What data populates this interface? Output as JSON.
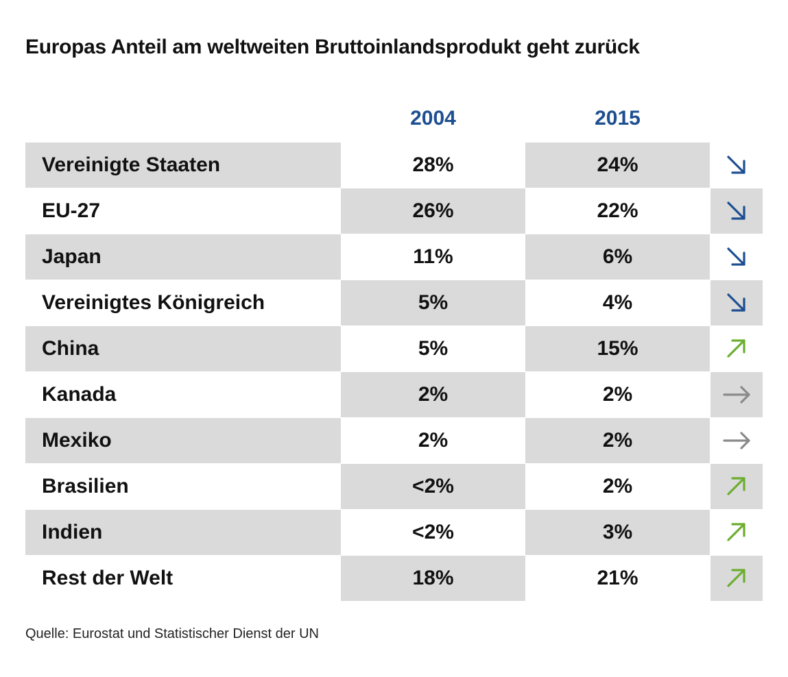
{
  "chart_data": {
    "type": "table",
    "title": "Europas Anteil am weltweiten Bruttoinlandsprodukt geht zurück",
    "columns": [
      "2004",
      "2015"
    ],
    "rows": [
      {
        "label": "Vereinigte Staaten",
        "v2004": "28%",
        "v2015": "24%",
        "trend": "down"
      },
      {
        "label": "EU-27",
        "v2004": "26%",
        "v2015": "22%",
        "trend": "down"
      },
      {
        "label": "Japan",
        "v2004": "11%",
        "v2015": "6%",
        "trend": "down"
      },
      {
        "label": "Vereinigtes Königreich",
        "v2004": "5%",
        "v2015": "4%",
        "trend": "down"
      },
      {
        "label": "China",
        "v2004": "5%",
        "v2015": "15%",
        "trend": "up"
      },
      {
        "label": "Kanada",
        "v2004": "2%",
        "v2015": "2%",
        "trend": "flat"
      },
      {
        "label": "Mexiko",
        "v2004": "2%",
        "v2015": "2%",
        "trend": "flat"
      },
      {
        "label": "Brasilien",
        "v2004": "<2%",
        "v2015": "2%",
        "trend": "up"
      },
      {
        "label": "Indien",
        "v2004": "<2%",
        "v2015": "3%",
        "trend": "up"
      },
      {
        "label": "Rest der Welt",
        "v2004": "18%",
        "v2015": "21%",
        "trend": "up"
      }
    ],
    "source": "Quelle: Eurostat und Statistischer Dienst der UN",
    "colors": {
      "year_header": "#1d4f91",
      "down": "#1d4f91",
      "up": "#6cae2f",
      "flat": "#8a8a8a",
      "band": "#dadada"
    }
  }
}
